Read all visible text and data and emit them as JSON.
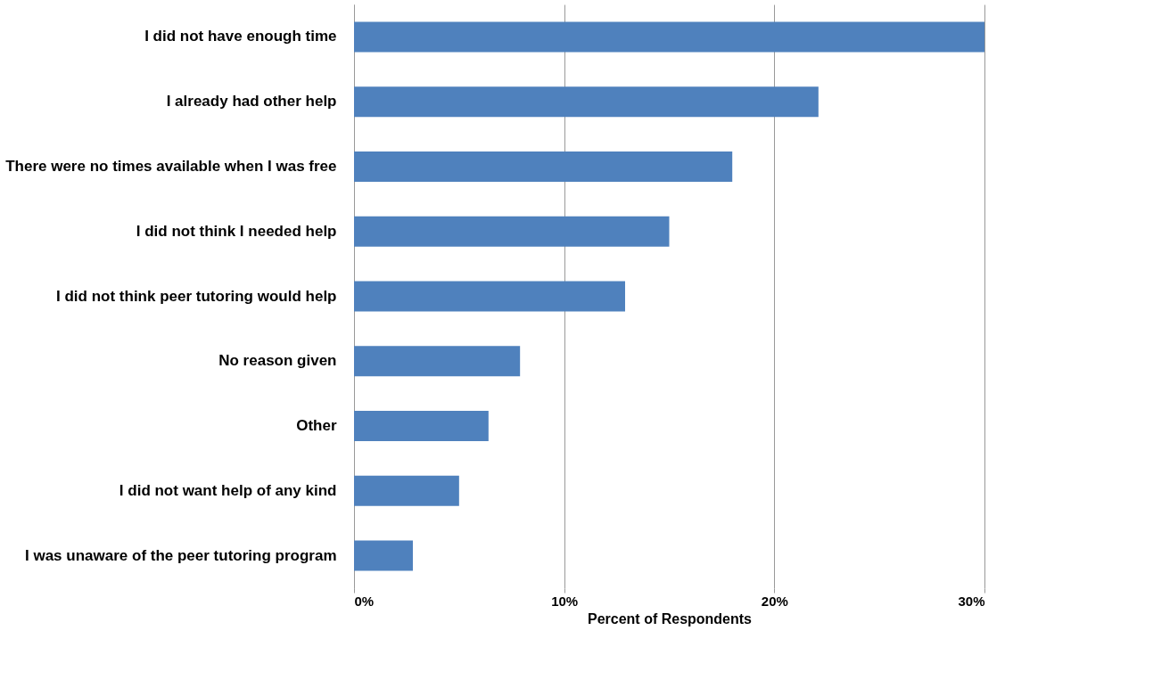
{
  "chart_data": {
    "type": "bar",
    "orientation": "horizontal",
    "xlabel": "Percent of Respondents",
    "categories": [
      "I did not have enough time",
      "I already had other help",
      "There were no times available when I was free",
      "I did not think I needed help",
      "I did not think peer tutoring would help",
      "No reason given",
      "Other",
      "I did not want help of any kind",
      "I was unaware of the peer tutoring program"
    ],
    "values": [
      30,
      22.1,
      18,
      15,
      12.9,
      7.9,
      6.4,
      5,
      2.8
    ],
    "color": "#4f81bd",
    "xlim": [
      0,
      30
    ],
    "xticks": [
      {
        "value": 0,
        "label": "0%"
      },
      {
        "value": 10,
        "label": "10%"
      },
      {
        "value": 20,
        "label": "20%"
      },
      {
        "value": 30,
        "label": "30%"
      }
    ],
    "grid": "x"
  }
}
